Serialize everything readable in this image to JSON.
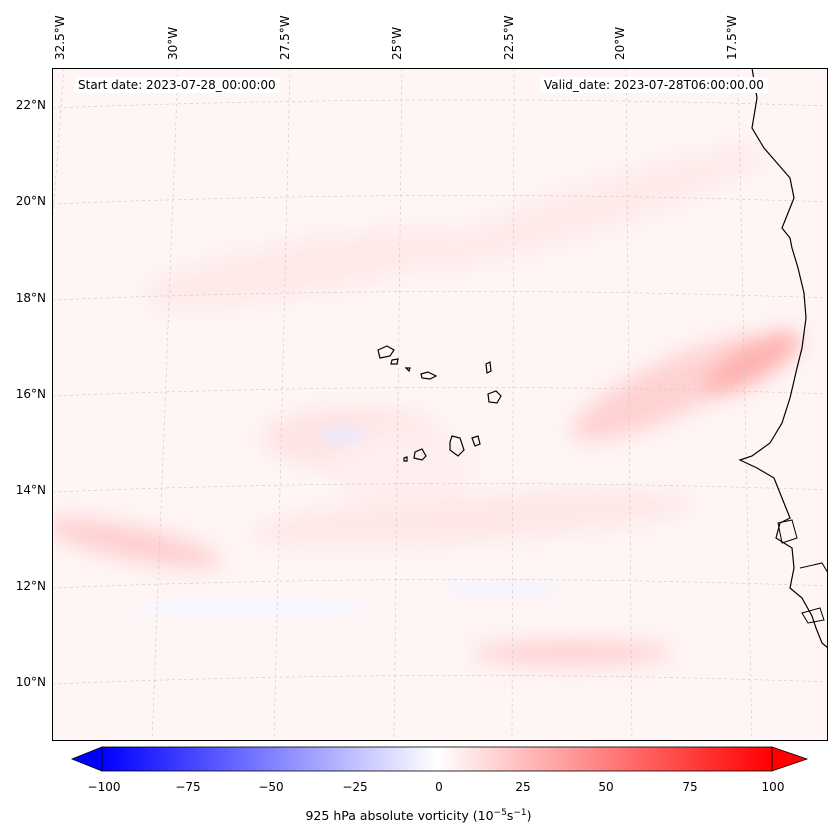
{
  "map": {
    "start_date": "Start date: 2023-07-28_00:00:00",
    "valid_date": "Valid_date: 2023-07-28T06:00:00.00",
    "lon_labels": [
      "32.5°W",
      "30°W",
      "27.5°W",
      "25°W",
      "22.5°W",
      "20°W",
      "17.5°W"
    ],
    "lat_labels": [
      "22°N",
      "20°N",
      "18°N",
      "16°N",
      "14°N",
      "12°N",
      "10°N"
    ],
    "field": "925 hPa absolute vorticity",
    "colormap": "bwr",
    "colors": {
      "min": "#0000ff",
      "mid": "#ffffff",
      "max": "#ff0000"
    }
  },
  "colorbar": {
    "label_prefix": "925 hPa absolute vorticity (10",
    "label_exp1": "−5",
    "label_mid": "s",
    "label_exp2": "−1",
    "label_suffix": ")",
    "ticks": [
      "−100",
      "−75",
      "−50",
      "−25",
      "0",
      "25",
      "50",
      "75",
      "100"
    ],
    "min": -100,
    "max": 100,
    "extend": "both"
  }
}
